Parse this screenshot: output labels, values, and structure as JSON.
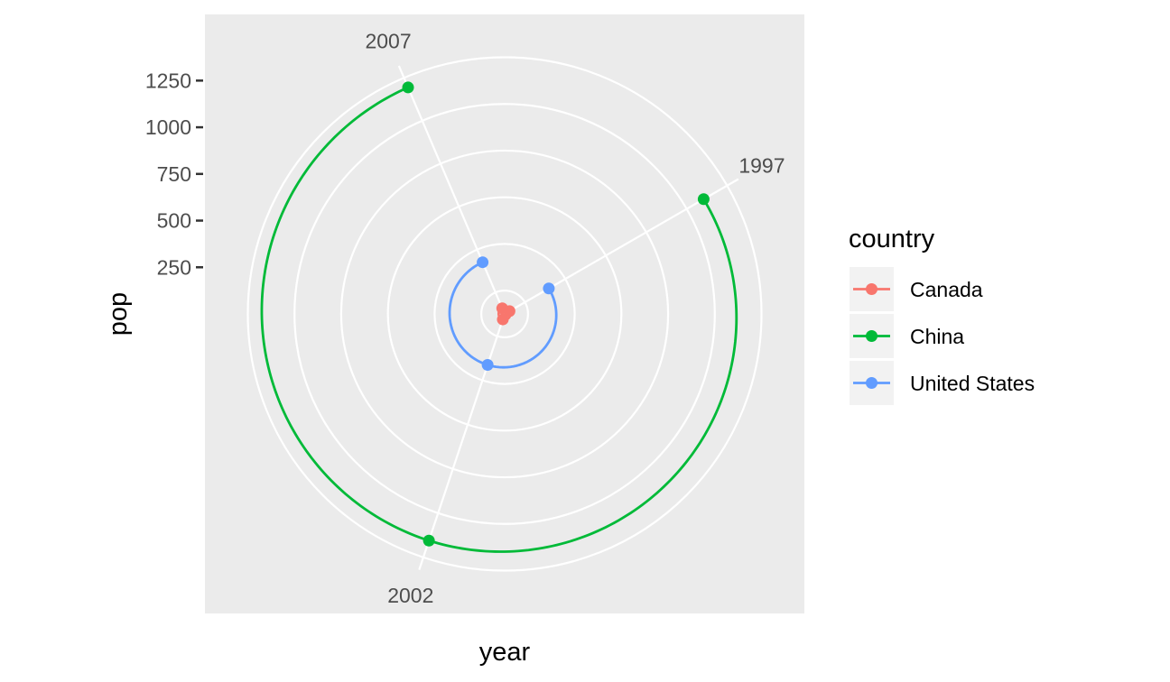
{
  "chart_data": {
    "type": "line",
    "coord": "polar",
    "xlabel": "year",
    "ylabel": "pop",
    "x_ticks": [
      "1997",
      "2002",
      "2007"
    ],
    "y_ticks": [
      "250",
      "500",
      "750",
      "1000",
      "1250"
    ],
    "y_tick_values": [
      250,
      500,
      750,
      1000,
      1250
    ],
    "radial_gridlines": [
      125,
      375,
      625,
      875,
      1125,
      1375
    ],
    "ylim": [
      0,
      1445
    ],
    "x": [
      1997,
      2002,
      2007
    ],
    "legend": {
      "title": "country",
      "position": "right"
    },
    "series": [
      {
        "name": "Canada",
        "color": "#F8766D",
        "values": [
          30,
          31,
          33
        ]
      },
      {
        "name": "China",
        "color": "#00BA38",
        "values": [
          1230,
          1280,
          1319
        ]
      },
      {
        "name": "United States",
        "color": "#619CFF",
        "values": [
          273,
          288,
          301
        ]
      }
    ],
    "grid": true,
    "panel_background": "#EBEBEB"
  }
}
